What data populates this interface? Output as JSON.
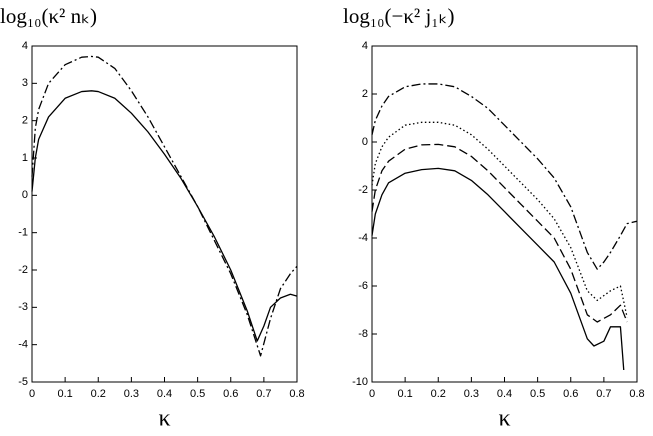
{
  "chart_data": [
    {
      "type": "line",
      "title": "log₁₀(κ² nₖ)",
      "xlabel": "κ",
      "xlim": [
        0,
        0.8
      ],
      "xticks": [
        0,
        0.1,
        0.2,
        0.3,
        0.4,
        0.5,
        0.6,
        0.7,
        0.8
      ],
      "ylim": [
        -5,
        4
      ],
      "yticks": [
        -5,
        -4,
        -3,
        -2,
        -1,
        0,
        1,
        2,
        3,
        4
      ],
      "series": [
        {
          "color": "#000000",
          "dash": "solid",
          "x": [
            0,
            0.01,
            0.02,
            0.05,
            0.1,
            0.15,
            0.18,
            0.2,
            0.25,
            0.3,
            0.35,
            0.4,
            0.45,
            0.5,
            0.55,
            0.6,
            0.65,
            0.68,
            0.7,
            0.72,
            0.75,
            0.78,
            0.8
          ],
          "values": [
            0.1,
            1.0,
            1.5,
            2.1,
            2.6,
            2.78,
            2.8,
            2.78,
            2.6,
            2.2,
            1.7,
            1.1,
            0.45,
            -0.3,
            -1.1,
            -2.0,
            -3.1,
            -3.9,
            -3.5,
            -3.0,
            -2.75,
            -2.65,
            -2.7
          ]
        },
        {
          "color": "#000000",
          "dash": "dashdot",
          "x": [
            0,
            0.01,
            0.02,
            0.05,
            0.1,
            0.15,
            0.18,
            0.2,
            0.25,
            0.3,
            0.35,
            0.4,
            0.45,
            0.5,
            0.55,
            0.6,
            0.65,
            0.69,
            0.72,
            0.75,
            0.78,
            0.8
          ],
          "values": [
            0.5,
            1.8,
            2.3,
            3.0,
            3.5,
            3.7,
            3.72,
            3.7,
            3.4,
            2.8,
            2.1,
            1.3,
            0.5,
            -0.3,
            -1.2,
            -2.1,
            -3.2,
            -4.3,
            -3.3,
            -2.5,
            -2.1,
            -1.9
          ]
        }
      ]
    },
    {
      "type": "line",
      "title": "log₁₀(−κ² j₁ₖ)",
      "xlabel": "κ",
      "xlim": [
        0,
        0.8
      ],
      "xticks": [
        0,
        0.1,
        0.2,
        0.3,
        0.4,
        0.5,
        0.6,
        0.7,
        0.8
      ],
      "ylim": [
        -10,
        4
      ],
      "yticks": [
        -10,
        -8,
        -6,
        -4,
        -2,
        0,
        2,
        4
      ],
      "series": [
        {
          "color": "#000000",
          "dash": "solid",
          "x": [
            0,
            0.01,
            0.03,
            0.05,
            0.1,
            0.15,
            0.2,
            0.25,
            0.3,
            0.35,
            0.4,
            0.45,
            0.5,
            0.55,
            0.6,
            0.65,
            0.67,
            0.7,
            0.72,
            0.75,
            0.76
          ],
          "values": [
            -3.9,
            -3.0,
            -2.2,
            -1.7,
            -1.3,
            -1.15,
            -1.1,
            -1.2,
            -1.6,
            -2.2,
            -2.9,
            -3.6,
            -4.3,
            -5.0,
            -6.3,
            -8.2,
            -8.5,
            -8.3,
            -7.7,
            -7.7,
            -9.5
          ]
        },
        {
          "color": "#000000",
          "dash": "dashed",
          "x": [
            0,
            0.01,
            0.03,
            0.05,
            0.1,
            0.15,
            0.2,
            0.25,
            0.3,
            0.35,
            0.4,
            0.45,
            0.5,
            0.55,
            0.6,
            0.65,
            0.68,
            0.72,
            0.75,
            0.77
          ],
          "values": [
            -2.9,
            -2.0,
            -1.2,
            -0.8,
            -0.3,
            -0.12,
            -0.1,
            -0.2,
            -0.6,
            -1.2,
            -1.9,
            -2.6,
            -3.3,
            -4.0,
            -5.3,
            -7.2,
            -7.5,
            -7.2,
            -6.8,
            -7.5
          ]
        },
        {
          "color": "#000000",
          "dash": "dotted",
          "x": [
            0,
            0.01,
            0.03,
            0.05,
            0.1,
            0.15,
            0.2,
            0.25,
            0.3,
            0.35,
            0.4,
            0.45,
            0.5,
            0.55,
            0.6,
            0.65,
            0.68,
            0.72,
            0.75,
            0.77
          ],
          "values": [
            -1.8,
            -0.9,
            -0.2,
            0.2,
            0.7,
            0.82,
            0.82,
            0.7,
            0.3,
            -0.3,
            -1.0,
            -1.7,
            -2.4,
            -3.2,
            -4.4,
            -6.2,
            -6.6,
            -6.2,
            -6.0,
            -7.3
          ]
        },
        {
          "color": "#000000",
          "dash": "dashdot",
          "x": [
            0,
            0.01,
            0.03,
            0.05,
            0.1,
            0.15,
            0.2,
            0.25,
            0.3,
            0.35,
            0.4,
            0.45,
            0.5,
            0.55,
            0.6,
            0.65,
            0.68,
            0.7,
            0.72,
            0.75,
            0.77,
            0.8
          ],
          "values": [
            0.3,
            0.9,
            1.5,
            1.9,
            2.3,
            2.42,
            2.42,
            2.3,
            1.9,
            1.4,
            0.7,
            0,
            -0.7,
            -1.5,
            -2.7,
            -4.6,
            -5.3,
            -5.0,
            -4.6,
            -3.9,
            -3.4,
            -3.3
          ]
        }
      ]
    }
  ]
}
